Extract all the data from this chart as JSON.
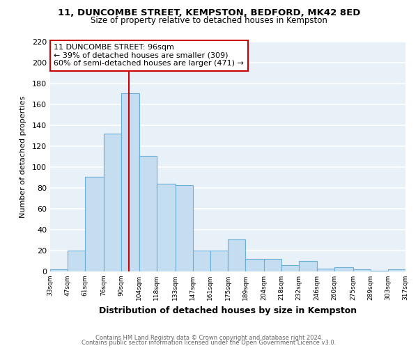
{
  "title": "11, DUNCOMBE STREET, KEMPSTON, BEDFORD, MK42 8ED",
  "subtitle": "Size of property relative to detached houses in Kempston",
  "xlabel": "Distribution of detached houses by size in Kempston",
  "ylabel": "Number of detached properties",
  "bar_color": "#c5ddf0",
  "bar_edge_color": "#6aaed6",
  "background_color": "#ffffff",
  "plot_bg_color": "#e8f0f8",
  "grid_color": "#ffffff",
  "bins": [
    33,
    47,
    61,
    76,
    90,
    104,
    118,
    133,
    147,
    161,
    175,
    189,
    204,
    218,
    232,
    246,
    260,
    275,
    289,
    303,
    317
  ],
  "heights": [
    2,
    20,
    91,
    132,
    171,
    111,
    84,
    83,
    20,
    20,
    31,
    12,
    12,
    6,
    10,
    3,
    4,
    2,
    1,
    2
  ],
  "bin_labels": [
    "33sqm",
    "47sqm",
    "61sqm",
    "76sqm",
    "90sqm",
    "104sqm",
    "118sqm",
    "133sqm",
    "147sqm",
    "161sqm",
    "175sqm",
    "189sqm",
    "204sqm",
    "218sqm",
    "232sqm",
    "246sqm",
    "260sqm",
    "275sqm",
    "289sqm",
    "303sqm",
    "317sqm"
  ],
  "vline_x": 96,
  "vline_color": "#cc0000",
  "annotation_line1": "11 DUNCOMBE STREET: 96sqm",
  "annotation_line2": "← 39% of detached houses are smaller (309)",
  "annotation_line3": "60% of semi-detached houses are larger (471) →",
  "annotation_box_color": "white",
  "annotation_box_edge": "#cc0000",
  "ylim": [
    0,
    220
  ],
  "yticks": [
    0,
    20,
    40,
    60,
    80,
    100,
    120,
    140,
    160,
    180,
    200,
    220
  ],
  "footer1": "Contains HM Land Registry data © Crown copyright and database right 2024.",
  "footer2": "Contains public sector information licensed under the Open Government Licence v3.0."
}
